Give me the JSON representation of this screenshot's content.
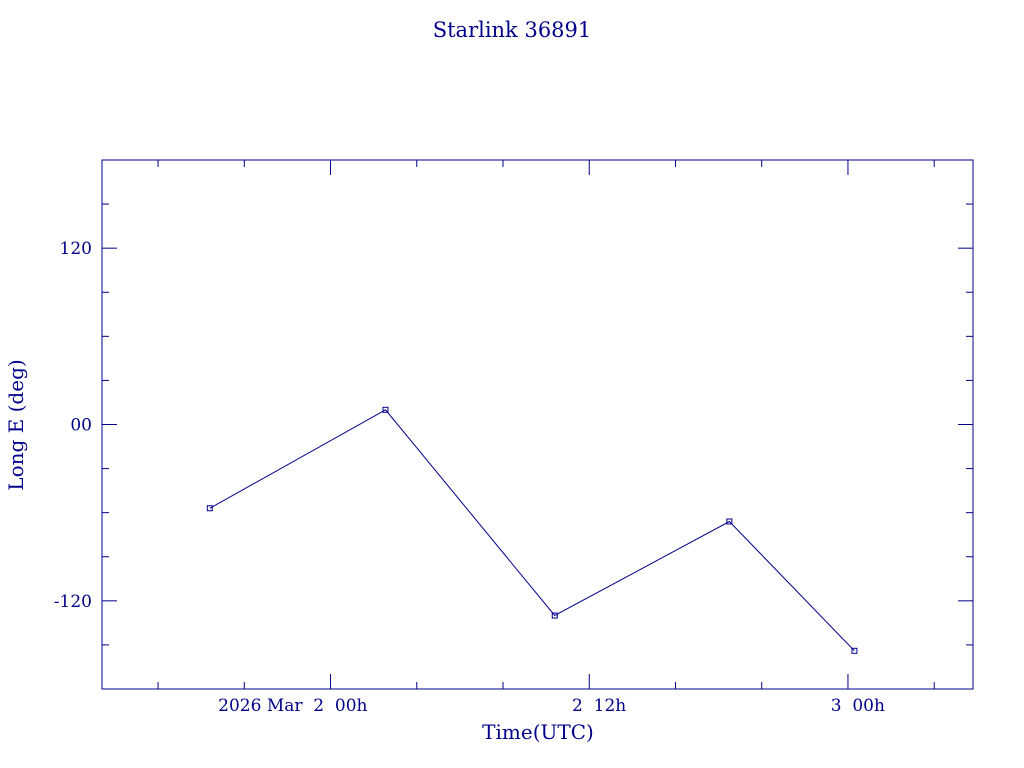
{
  "chart_data": {
    "type": "line",
    "title": "Starlink 36891",
    "xlabel": "Time(UTC)",
    "ylabel": "Long E (deg)",
    "x_unit": "hours",
    "x_tick_labels": [
      {
        "x": 0,
        "label": "2026 Mar  2  00h"
      },
      {
        "x": 12,
        "label": "2  12h"
      },
      {
        "x": 24,
        "label": "3  00h"
      }
    ],
    "y_tick_labels": [
      {
        "y": 120,
        "label": "120"
      },
      {
        "y": 0,
        "label": "00"
      },
      {
        "y": -120,
        "label": "-120"
      }
    ],
    "xlim": [
      -10.6,
      29.8
    ],
    "ylim": [
      -180,
      180
    ],
    "series": [
      {
        "x": [
          -5.6,
          2.55,
          10.4,
          18.5,
          24.3
        ],
        "y": [
          -57,
          10,
          -130,
          -66,
          -154
        ]
      }
    ],
    "marker": "square",
    "grid": false,
    "color": "#00008b"
  }
}
